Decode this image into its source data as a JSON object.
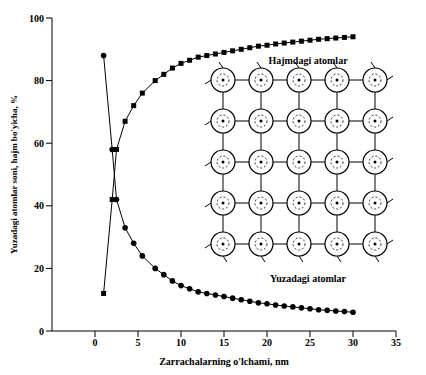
{
  "chart_data": {
    "type": "line",
    "x_label": "Zarrachalarning o'lchami, nm",
    "y_label": "Yuzadagi atomlar soni, hajm bo'yicha, %",
    "x": [
      1,
      2,
      2.5,
      3.5,
      4.5,
      5.5,
      7,
      8,
      9,
      10,
      11,
      12,
      13,
      14,
      15,
      16,
      17,
      18,
      19,
      20,
      21,
      22,
      23,
      24,
      25,
      26,
      27,
      28,
      29,
      30
    ],
    "series": [
      {
        "name": "Hajmdagi atomlar",
        "color": "#000000",
        "marker": "square",
        "values": [
          12,
          42,
          58,
          67,
          72,
          76,
          80,
          82,
          84,
          85.5,
          86.5,
          87.5,
          88,
          88.5,
          89,
          89.5,
          90,
          90.5,
          91,
          91.3,
          91.7,
          92,
          92.3,
          92.6,
          92.9,
          93.2,
          93.4,
          93.6,
          93.8,
          94
        ]
      },
      {
        "name": "Yuzadagi atomlar",
        "color": "#000000",
        "marker": "circle",
        "values": [
          88,
          58,
          42,
          33,
          28,
          24,
          20,
          18,
          16,
          14.5,
          13.5,
          12.5,
          12,
          11.5,
          11,
          10.5,
          10,
          9.5,
          9,
          8.7,
          8.3,
          8,
          7.7,
          7.4,
          7.1,
          6.8,
          6.6,
          6.4,
          6.2,
          6
        ]
      }
    ],
    "xlim": [
      -5,
      35
    ],
    "xticks": [
      0,
      5,
      10,
      15,
      20,
      25,
      30,
      35
    ],
    "ylim": [
      0,
      100
    ],
    "yticks": [
      0,
      20,
      40,
      60,
      80,
      100
    ],
    "grid": false,
    "legend": false
  }
}
